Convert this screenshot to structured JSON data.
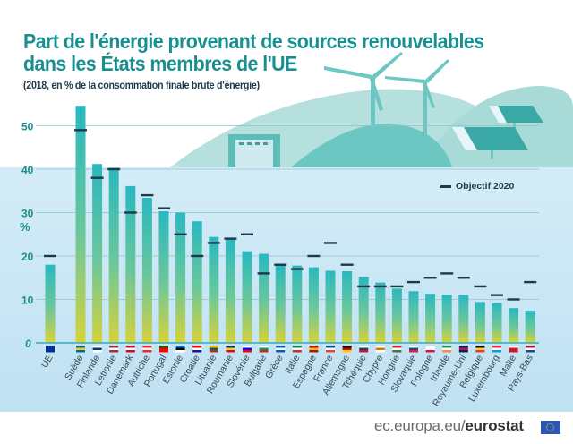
{
  "header": {
    "title_line1": "Part de l'énergie provenant de sources renouvelables",
    "title_line2": "dans les États membres de l'UE",
    "subtitle": "(2018, en % de la consommation finale brute d'énergie)"
  },
  "legend": {
    "label": "Objectif 2020",
    "icon": "target-dash-icon"
  },
  "footer": {
    "domain": "ec.europa.eu/",
    "brand": "eurostat",
    "logo": "eu-flag-icon"
  },
  "colors": {
    "title": "#1b8f8f",
    "bar_top": "#2ab8c0",
    "bar_bottom": "#d6d23a",
    "target": "#1e3a4a",
    "axis_labels": "#1b8f8f",
    "panel": "#c9e7f5",
    "deco": "#7fcfcb"
  },
  "chart_data": {
    "type": "bar",
    "title": "Part de l'énergie provenant de sources renouvelables dans les États membres de l'UE",
    "subtitle": "(2018, en % de la consommation finale brute d'énergie)",
    "xlabel": "",
    "ylabel": "%",
    "ylim": [
      0,
      55
    ],
    "yticks": [
      0,
      10,
      20,
      30,
      40,
      50
    ],
    "ytick_labels": [
      "0",
      "10",
      "20",
      "30",
      "40",
      "50"
    ],
    "grid": true,
    "legend_position": "top-right",
    "categories": [
      "UE",
      "Suède",
      "Finlande",
      "Lettonie",
      "Danemark",
      "Autriche",
      "Portugal",
      "Estonie",
      "Croatie",
      "Lituanie",
      "Roumanie",
      "Slovénie",
      "Bulgarie",
      "Grèce",
      "Italie",
      "Espagne",
      "France",
      "Allemagne",
      "Tchéquie",
      "Chypre",
      "Hongrie",
      "Slovaquie",
      "Pologne",
      "Irlande",
      "Royaume-Uni",
      "Belgique",
      "Luxembourg",
      "Malte",
      "Pays-Bas"
    ],
    "series": [
      {
        "name": "2018",
        "values": [
          18.0,
          54.6,
          41.2,
          40.3,
          36.1,
          33.4,
          30.3,
          30.0,
          28.0,
          24.4,
          23.9,
          21.1,
          20.5,
          18.0,
          17.8,
          17.4,
          16.6,
          16.5,
          15.2,
          13.9,
          12.5,
          11.9,
          11.3,
          11.1,
          11.0,
          9.4,
          9.1,
          8.0,
          7.4
        ]
      },
      {
        "name": "Objectif 2020",
        "values": [
          20,
          49,
          38,
          40,
          30,
          34,
          31,
          25,
          20,
          23,
          24,
          25,
          16,
          18,
          17,
          20,
          23,
          18,
          13,
          13,
          13,
          14,
          15,
          16,
          15,
          13,
          11,
          10,
          14
        ]
      }
    ],
    "flags": [
      [
        "#003399",
        "#003399",
        "#003399"
      ],
      [
        "#006aa7",
        "#fecc00",
        "#006aa7"
      ],
      [
        "#ffffff",
        "#003580",
        "#ffffff"
      ],
      [
        "#9e3039",
        "#ffffff",
        "#9e3039"
      ],
      [
        "#c8102e",
        "#ffffff",
        "#c8102e"
      ],
      [
        "#ed2939",
        "#ffffff",
        "#ed2939"
      ],
      [
        "#006600",
        "#ff0000",
        "#ff0000"
      ],
      [
        "#0072ce",
        "#000000",
        "#ffffff"
      ],
      [
        "#ff0000",
        "#ffffff",
        "#171796"
      ],
      [
        "#fdb913",
        "#006a44",
        "#c1272d"
      ],
      [
        "#002b7f",
        "#fcd116",
        "#ce1126"
      ],
      [
        "#ffffff",
        "#0000ff",
        "#ff0000"
      ],
      [
        "#ffffff",
        "#00966e",
        "#d62612"
      ],
      [
        "#0d5eaf",
        "#ffffff",
        "#0d5eaf"
      ],
      [
        "#009246",
        "#ffffff",
        "#ce2b37"
      ],
      [
        "#aa151b",
        "#f1bf00",
        "#aa151b"
      ],
      [
        "#0055a4",
        "#ffffff",
        "#ef4135"
      ],
      [
        "#000000",
        "#dd0000",
        "#ffce00"
      ],
      [
        "#ffffff",
        "#11457e",
        "#d7141a"
      ],
      [
        "#ffffff",
        "#d57800",
        "#ffffff"
      ],
      [
        "#ce2939",
        "#ffffff",
        "#477050"
      ],
      [
        "#ffffff",
        "#0b4ea2",
        "#ee1c25"
      ],
      [
        "#ffffff",
        "#ffffff",
        "#dc143c"
      ],
      [
        "#169b62",
        "#ffffff",
        "#ff883e"
      ],
      [
        "#012169",
        "#c8102e",
        "#012169"
      ],
      [
        "#000000",
        "#fdda24",
        "#ef3340"
      ],
      [
        "#ed2939",
        "#ffffff",
        "#00a1de"
      ],
      [
        "#ffffff",
        "#cf142b",
        "#cf142b"
      ],
      [
        "#ae1c28",
        "#ffffff",
        "#21468b"
      ]
    ]
  }
}
